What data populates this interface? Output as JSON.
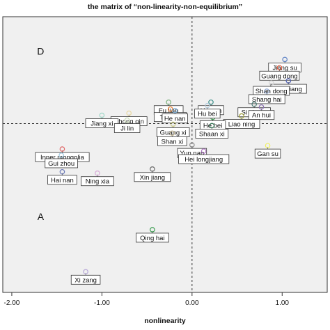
{
  "chart_data": {
    "type": "scatter",
    "title": "the matrix of “non-linearity-non-equilibrium”",
    "xlabel": "nonlinearity",
    "ylabel": "",
    "xlim": [
      -2.1,
      1.5
    ],
    "ylim": [
      -2.45,
      1.55
    ],
    "xticks": [
      -2.0,
      -1.0,
      0.0,
      1.0
    ],
    "xtick_labels": [
      "-2.00",
      "-1.00",
      "0.00",
      "1.00"
    ],
    "reference_lines": {
      "x": 0.0,
      "y": 0.0
    },
    "grid": false,
    "quadrant_labels": [
      {
        "text": "D",
        "x": -1.68,
        "y": 1.0
      },
      {
        "text": "A",
        "x": -1.68,
        "y": -1.4
      }
    ],
    "points": [
      {
        "label": "Jiang su",
        "x": 1.03,
        "y": 0.93,
        "color": "#5a7fc4"
      },
      {
        "label": "Guang dong",
        "x": 0.97,
        "y": 0.81,
        "color": "#e3573a"
      },
      {
        "label": "Zhe jiang",
        "x": 1.07,
        "y": 0.62,
        "color": "#4f5fb0"
      },
      {
        "label": "Shan dong",
        "x": 0.88,
        "y": 0.59,
        "color": "#d4d4d4"
      },
      {
        "label": "Shang hai",
        "x": 0.83,
        "y": 0.47,
        "color": "#9bb0d6"
      },
      {
        "label": "Si chuan",
        "x": 0.69,
        "y": 0.28,
        "color": "#4b7a73"
      },
      {
        "label": "An hui",
        "x": 0.77,
        "y": 0.24,
        "color": "#8a6fb0"
      },
      {
        "label": "Liao ning",
        "x": 0.55,
        "y": 0.11,
        "color": "#9c9c38"
      },
      {
        "label": "He bei",
        "x": 0.23,
        "y": 0.09,
        "color": "#3b9c50"
      },
      {
        "label": "Hu nan",
        "x": 0.21,
        "y": 0.31,
        "color": "#3a8f8a"
      },
      {
        "label": "Hu bei",
        "x": 0.17,
        "y": 0.26,
        "color": "#b8cfe0"
      },
      {
        "label": "Fu jian",
        "x": -0.26,
        "y": 0.31,
        "color": "#7ab07a"
      },
      {
        "label": "Tian jin",
        "x": -0.24,
        "y": 0.21,
        "color": "#e87a2a"
      },
      {
        "label": "He nan",
        "x": -0.19,
        "y": 0.19,
        "color": "#7fb0d8"
      },
      {
        "label": "Chong qin",
        "x": -0.7,
        "y": 0.15,
        "color": "#e8d8a0"
      },
      {
        "label": "Guang xi",
        "x": -0.21,
        "y": -0.01,
        "color": "#cfcf88"
      },
      {
        "label": "Shaan xi",
        "x": 0.22,
        "y": -0.03,
        "color": "#3b7a5a"
      },
      {
        "label": "Jiang xi",
        "x": -1.0,
        "y": 0.12,
        "color": "#9fd8c8"
      },
      {
        "label": "Ji lin",
        "x": -0.72,
        "y": 0.05,
        "color": "#c4d8b0"
      },
      {
        "label": "Shan xi",
        "x": -0.22,
        "y": -0.14,
        "color": "#c7bc9a"
      },
      {
        "label": "Yun nan",
        "x": 0.0,
        "y": -0.31,
        "color": "#8a8a8a"
      },
      {
        "label": "Hei longjiang",
        "x": 0.13,
        "y": -0.4,
        "color": "#b07ac4"
      },
      {
        "label": "Gan su",
        "x": 0.84,
        "y": -0.32,
        "color": "#f0f060"
      },
      {
        "label": "Inner mongolia",
        "x": -1.44,
        "y": -0.37,
        "color": "#e06a6a"
      },
      {
        "label": "Gui zhou",
        "x": -1.45,
        "y": -0.46,
        "color": "#a0c8e0"
      },
      {
        "label": "Xin jiang",
        "x": -0.44,
        "y": -0.66,
        "color": "#6a6a6a"
      },
      {
        "label": "Hai nan",
        "x": -1.44,
        "y": -0.7,
        "color": "#6a78b8"
      },
      {
        "label": "Ning xia",
        "x": -1.05,
        "y": -0.72,
        "color": "#d8a8d8"
      },
      {
        "label": "Qing hai",
        "x": -0.44,
        "y": -1.54,
        "color": "#3b9c50"
      },
      {
        "label": "Xi zang",
        "x": -1.18,
        "y": -2.15,
        "color": "#b8a8d8"
      }
    ]
  }
}
